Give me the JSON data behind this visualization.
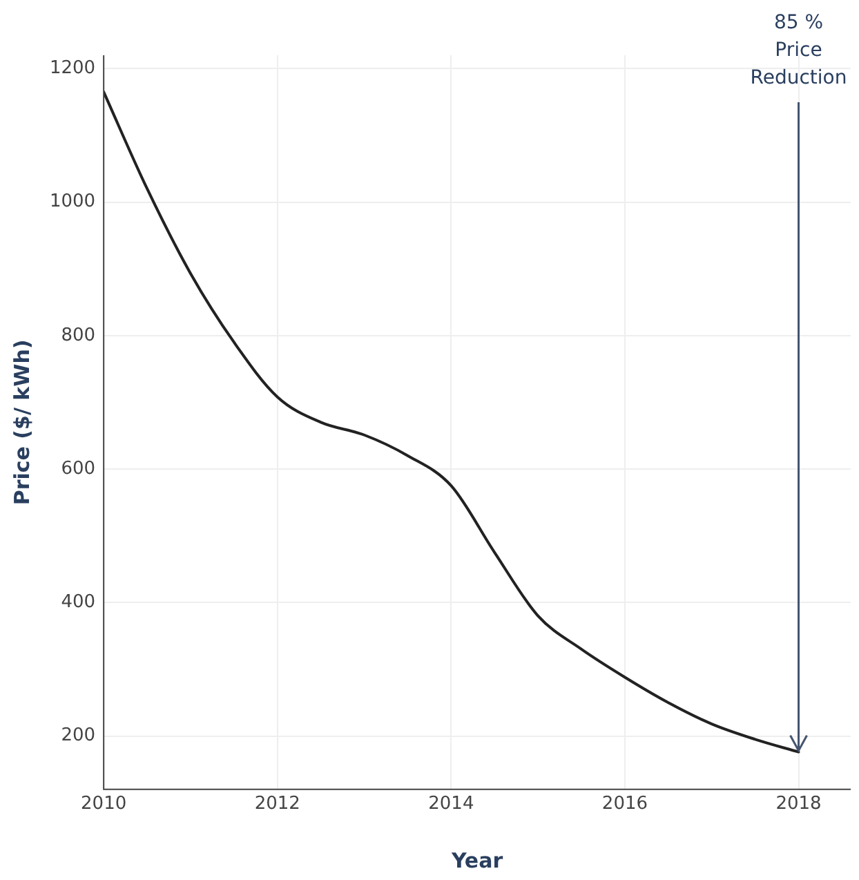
{
  "chart_data": {
    "type": "line",
    "xlabel": "Year",
    "ylabel": "Price ($/ kWh)",
    "x": [
      2010,
      2010.5,
      2011,
      2011.5,
      2012,
      2012.5,
      2013,
      2013.5,
      2014,
      2014.5,
      2015,
      2015.5,
      2016,
      2016.5,
      2017,
      2017.5,
      2018
    ],
    "series": [
      {
        "color": "#222222",
        "values": [
          1165,
          1020,
          893,
          790,
          708,
          670,
          651,
          620,
          575,
          475,
          380,
          330,
          288,
          250,
          218,
          195,
          176
        ]
      }
    ],
    "xlim": [
      2010,
      2018.6
    ],
    "xticks": [
      2010,
      2012,
      2014,
      2016,
      2018
    ],
    "ylim": [
      120,
      1220
    ],
    "yticks": [
      200,
      400,
      600,
      800,
      1000,
      1200
    ],
    "grid": true,
    "legend": false,
    "marker": "none",
    "line_style": "solid",
    "annotations": [
      {
        "text": "85 %\nPrice\nReduction",
        "x": 2018,
        "y": 176
      }
    ]
  }
}
